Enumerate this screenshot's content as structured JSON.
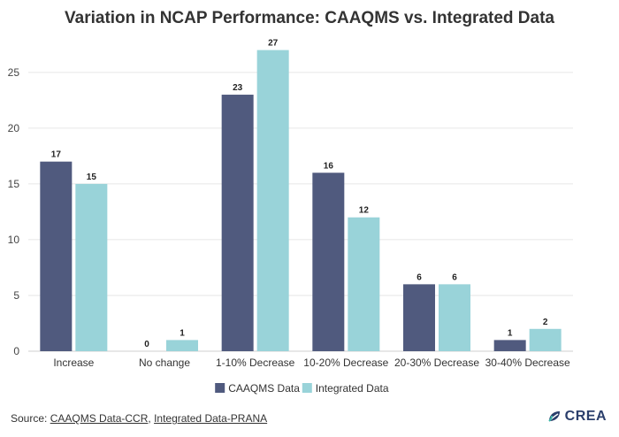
{
  "chart_data": {
    "type": "bar",
    "title": "Variation in NCAP Performance: CAAQMS vs. Integrated Data",
    "xlabel": "",
    "ylabel": "",
    "categories": [
      "Increase",
      "No change",
      "1-10% Decrease",
      "10-20% Decrease",
      "20-30% Decrease",
      "30-40% Decrease"
    ],
    "series": [
      {
        "name": "CAAQMS Data",
        "values": [
          17,
          0,
          23,
          16,
          6,
          1
        ],
        "color": "#505a7e"
      },
      {
        "name": "Integrated Data",
        "values": [
          15,
          1,
          27,
          12,
          6,
          2
        ],
        "color": "#99d3d9"
      }
    ],
    "ylim": [
      0,
      28
    ],
    "yticks": [
      0,
      5,
      10,
      15,
      20,
      25
    ],
    "grid": true,
    "legend_position": "bottom-center",
    "gridline_color": "#e6e6e6"
  },
  "footer": {
    "source_prefix": "Source: ",
    "source_link_1": "CAAQMS Data-CCR",
    "separator": ", ",
    "source_link_2": "Integrated Data-PRANA"
  },
  "brand": {
    "name": "CREA",
    "icon": "crea-leaf-icon",
    "icon_colors": [
      "#2b3f6c",
      "#3bb6a8"
    ]
  }
}
